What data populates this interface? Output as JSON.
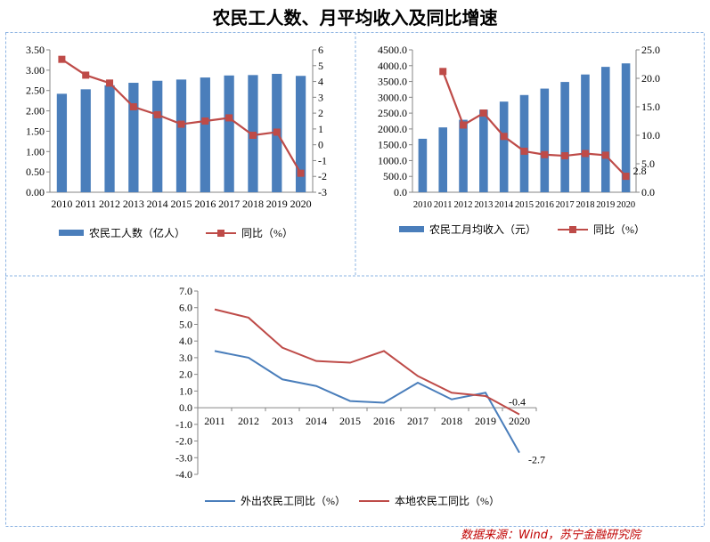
{
  "title": "农民工人数、月平均收入及同比增速",
  "source": "数据来源：Wind，苏宁金融研究院",
  "colors": {
    "bar": "#4a7ebb",
    "line": "#be4b48",
    "blue_line": "#4a7ebb",
    "frame": "#8eb4e3"
  },
  "chart_data": [
    {
      "type": "bar",
      "categories": [
        "2010",
        "2011",
        "2012",
        "2013",
        "2014",
        "2015",
        "2016",
        "2017",
        "2018",
        "2019",
        "2020"
      ],
      "series": [
        {
          "name": "农民工人数（亿人）",
          "kind": "bar",
          "axis": "left",
          "values": [
            2.42,
            2.53,
            2.63,
            2.69,
            2.74,
            2.77,
            2.82,
            2.87,
            2.88,
            2.91,
            2.86
          ]
        },
        {
          "name": "同比（%）",
          "kind": "line",
          "axis": "right",
          "values": [
            5.4,
            4.4,
            3.9,
            2.4,
            1.9,
            1.3,
            1.5,
            1.7,
            0.6,
            0.8,
            -1.8
          ]
        }
      ],
      "ylim": [
        0,
        3.5
      ],
      "yticks": [
        "0.00",
        "0.50",
        "1.00",
        "1.50",
        "2.00",
        "2.50",
        "3.00",
        "3.50"
      ],
      "y2lim": [
        -3,
        6
      ],
      "y2ticks": [
        "-3",
        "-2",
        "-1",
        "0",
        "1",
        "2",
        "3",
        "4",
        "5",
        "6"
      ],
      "legend": "bottom"
    },
    {
      "type": "bar",
      "categories": [
        "2010",
        "2011",
        "2012",
        "2013",
        "2014",
        "2015",
        "2016",
        "2017",
        "2018",
        "2019",
        "2020"
      ],
      "series": [
        {
          "name": "农民工月均收入（元）",
          "kind": "bar",
          "axis": "left",
          "values": [
            1690,
            2049,
            2290,
            2609,
            2864,
            3072,
            3275,
            3485,
            3721,
            3962,
            4072
          ]
        },
        {
          "name": "同比（%）",
          "kind": "line",
          "axis": "right",
          "values": [
            null,
            21.2,
            11.8,
            13.9,
            9.8,
            7.2,
            6.6,
            6.4,
            6.8,
            6.5,
            2.8
          ]
        }
      ],
      "ylim": [
        0,
        4500
      ],
      "yticks": [
        "0.0",
        "500.0",
        "1000.0",
        "1500.0",
        "2000.0",
        "2500.0",
        "3000.0",
        "3500.0",
        "4000.0",
        "4500.0"
      ],
      "y2lim": [
        0,
        25
      ],
      "y2ticks": [
        "0.0",
        "5.0",
        "10.0",
        "15.0",
        "20.0",
        "25.0"
      ],
      "data_labels": [
        {
          "series": 1,
          "index": 10,
          "text": "2.8"
        }
      ],
      "legend": "bottom"
    },
    {
      "type": "line",
      "categories": [
        "2011",
        "2012",
        "2013",
        "2014",
        "2015",
        "2016",
        "2017",
        "2018",
        "2019",
        "2020"
      ],
      "series": [
        {
          "name": "外出农民工同比（%）",
          "color": "#4a7ebb",
          "values": [
            3.4,
            3.0,
            1.7,
            1.3,
            0.4,
            0.3,
            1.5,
            0.5,
            0.9,
            -2.7
          ]
        },
        {
          "name": "本地农民工同比（%）",
          "color": "#be4b48",
          "values": [
            5.9,
            5.4,
            3.6,
            2.8,
            2.7,
            3.4,
            1.9,
            0.9,
            0.7,
            -0.4
          ]
        }
      ],
      "ylim": [
        -4,
        7
      ],
      "yticks": [
        "-4.0",
        "-3.0",
        "-2.0",
        "-1.0",
        "0.0",
        "1.0",
        "2.0",
        "3.0",
        "4.0",
        "5.0",
        "6.0",
        "7.0"
      ],
      "data_labels": [
        {
          "series": 0,
          "index": 9,
          "text": "-2.7"
        },
        {
          "series": 1,
          "index": 9,
          "text": "-0.4"
        }
      ],
      "legend": "bottom"
    }
  ]
}
